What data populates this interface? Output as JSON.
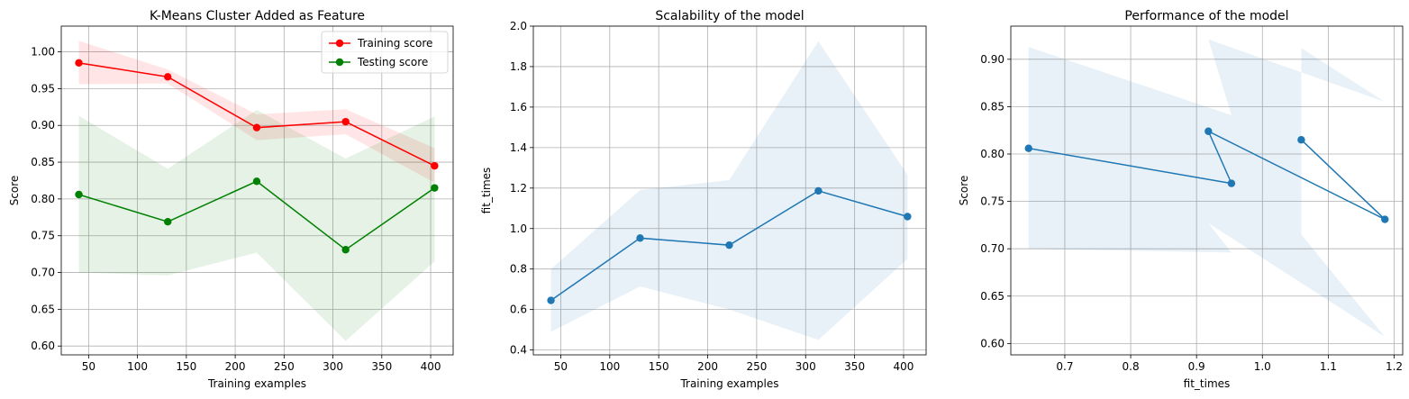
{
  "chart_data": [
    {
      "type": "line",
      "title": "K-Means Cluster Added as Feature",
      "xlabel": "Training examples",
      "ylabel": "Score",
      "xlim": [
        22,
        423
      ],
      "ylim": [
        0.588,
        1.035
      ],
      "xticks": [
        50,
        100,
        150,
        200,
        250,
        300,
        350,
        400
      ],
      "yticks": [
        0.6,
        0.65,
        0.7,
        0.75,
        0.8,
        0.85,
        0.9,
        0.95,
        1.0
      ],
      "ytick_decimals": 2,
      "grid": true,
      "legend": "top-right",
      "x": [
        40,
        131,
        222,
        313,
        404
      ],
      "series": [
        {
          "name": "Training score",
          "color": "#ff0000",
          "fill": "#ff0000",
          "fill_opacity": 0.1,
          "values": [
            0.985,
            0.966,
            0.897,
            0.905,
            0.845
          ],
          "band_low": [
            0.956,
            0.957,
            0.88,
            0.888,
            0.822
          ],
          "band_high": [
            1.015,
            0.976,
            0.915,
            0.922,
            0.869
          ]
        },
        {
          "name": "Testing score",
          "color": "#008000",
          "fill": "#008000",
          "fill_opacity": 0.1,
          "values": [
            0.806,
            0.769,
            0.824,
            0.731,
            0.815
          ],
          "band_low": [
            0.7,
            0.696,
            0.727,
            0.607,
            0.715
          ],
          "band_high": [
            0.913,
            0.841,
            0.921,
            0.855,
            0.912
          ]
        }
      ]
    },
    {
      "type": "line",
      "title": "Scalability of the model",
      "xlabel": "Training examples",
      "ylabel": "fit_times",
      "xlim": [
        22,
        423
      ],
      "ylim": [
        0.376,
        2.0
      ],
      "xticks": [
        50,
        100,
        150,
        200,
        250,
        300,
        350,
        400
      ],
      "yticks": [
        0.4,
        0.6,
        0.8,
        1.0,
        1.2,
        1.4,
        1.6,
        1.8,
        2.0
      ],
      "ytick_decimals": 1,
      "grid": true,
      "x": [
        40,
        131,
        222,
        313,
        404
      ],
      "series": [
        {
          "color": "#1f77b4",
          "fill": "#1f77b4",
          "fill_opacity": 0.1,
          "values": [
            0.645,
            0.953,
            0.918,
            1.186,
            1.059
          ],
          "band_low": [
            0.49,
            0.714,
            0.6,
            0.45,
            0.85
          ],
          "band_high": [
            0.8,
            1.19,
            1.24,
            1.925,
            1.266
          ]
        }
      ]
    },
    {
      "type": "line",
      "title": "Performance of the model",
      "xlabel": "fit_times",
      "ylabel": "Score",
      "xlim": [
        0.618,
        1.213
      ],
      "ylim": [
        0.588,
        0.935
      ],
      "xticks": [
        0.7,
        0.8,
        0.9,
        1.0,
        1.1,
        1.2
      ],
      "yticks": [
        0.6,
        0.65,
        0.7,
        0.75,
        0.8,
        0.85,
        0.9
      ],
      "ytick_decimals": 2,
      "xtick_decimals": 1,
      "grid": true,
      "x": [
        0.645,
        0.953,
        0.918,
        1.186,
        1.059
      ],
      "series": [
        {
          "color": "#1f77b4",
          "fill": "#1f77b4",
          "fill_opacity": 0.1,
          "values": [
            0.806,
            0.769,
            0.824,
            0.731,
            0.815
          ],
          "band_low": [
            0.7,
            0.696,
            0.727,
            0.607,
            0.715
          ],
          "band_high": [
            0.913,
            0.841,
            0.921,
            0.855,
            0.912
          ]
        }
      ]
    }
  ]
}
